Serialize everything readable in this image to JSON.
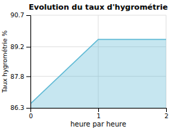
{
  "chart_data": {
    "type": "area",
    "title": "Evolution du taux d'hygrométrie",
    "xlabel": "heure par heure",
    "ylabel": "Taux hygrométrie %",
    "x": [
      0,
      1,
      2
    ],
    "values": [
      86.5,
      89.55,
      89.55
    ],
    "color": "#5bb8d4",
    "xlim": [
      0,
      2
    ],
    "ylim": [
      86.3,
      90.7
    ],
    "xticks": [
      0,
      1,
      2
    ],
    "yticks": [
      86.3,
      87.8,
      89.2,
      90.7
    ],
    "grid": true
  }
}
